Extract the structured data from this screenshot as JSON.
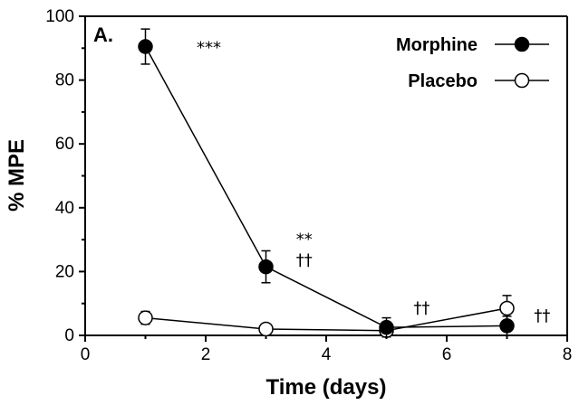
{
  "chart_data": {
    "type": "line",
    "panel_label": "A.",
    "xlabel": "Time (days)",
    "ylabel": "% MPE",
    "xlim": [
      0,
      8
    ],
    "ylim": [
      0,
      100
    ],
    "xticks": [
      0,
      2,
      4,
      6,
      8
    ],
    "yticks": [
      0,
      20,
      40,
      60,
      80,
      100
    ],
    "legend_position": "top-right",
    "series": [
      {
        "name": "Morphine",
        "marker": "filled-circle",
        "color": "#000000",
        "x": [
          1,
          3,
          5,
          7
        ],
        "y": [
          90.5,
          21.5,
          2.5,
          3.0
        ],
        "err": [
          5.5,
          5.0,
          3.0,
          3.0
        ]
      },
      {
        "name": "Placebo",
        "marker": "open-circle",
        "color": "#000000",
        "x": [
          1,
          3,
          5,
          7
        ],
        "y": [
          5.5,
          2.0,
          1.5,
          8.5
        ],
        "err": [
          2.0,
          0.5,
          0.5,
          4.0
        ]
      }
    ],
    "annotations": [
      {
        "text": "***",
        "x": 1.85,
        "y": 88.5
      },
      {
        "text": "**",
        "x": 3.5,
        "y": 28.5
      },
      {
        "text": "††",
        "x": 3.5,
        "y": 22.0
      },
      {
        "text": "††",
        "x": 5.45,
        "y": 7.0
      },
      {
        "text": "††",
        "x": 7.45,
        "y": 4.5
      }
    ]
  }
}
